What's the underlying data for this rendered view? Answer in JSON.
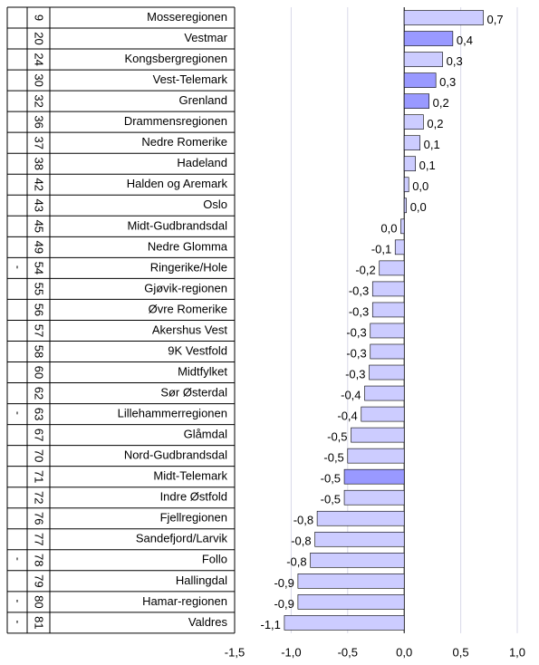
{
  "chart_data": {
    "type": "bar",
    "orientation": "horizontal",
    "categories": [
      "Mosseregionen",
      "Vestmar",
      "Kongsbergregionen",
      "Vest-Telemark",
      "Grenland",
      "Drammensregionen",
      "Nedre Romerike",
      "Hadeland",
      "Halden og Aremark",
      "Oslo",
      "Midt-Gudbrandsdal",
      "Nedre Glomma",
      "Ringerike/Hole",
      "Gjøvik-regionen",
      "Øvre Romerike",
      "Akershus Vest",
      "9K Vestfold",
      "Midtfylket",
      "Sør Østerdal",
      "Lillehammerregionen",
      "Glåmdal",
      "Nord-Gudbrandsdal",
      "Midt-Telemark",
      "Indre Østfold",
      "Fjellregionen",
      "Sandefjord/Larvik",
      "Follo",
      "Hallingdal",
      "Hamar-regionen",
      "Valdres"
    ],
    "ranks": [
      "9",
      "20",
      "24",
      "30",
      "32",
      "36",
      "37",
      "38",
      "42",
      "43",
      "45",
      "49",
      "54",
      "55",
      "56",
      "57",
      "58",
      "60",
      "62",
      "63",
      "67",
      "70",
      "71",
      "72",
      "76",
      "77",
      "78",
      "79",
      "80",
      "81"
    ],
    "flags": [
      null,
      null,
      null,
      null,
      null,
      null,
      null,
      null,
      null,
      null,
      null,
      null,
      "'",
      null,
      null,
      null,
      null,
      null,
      null,
      "'",
      null,
      null,
      null,
      null,
      null,
      null,
      "'",
      null,
      "'",
      "'"
    ],
    "values": [
      0.7,
      0.43,
      0.34,
      0.28,
      0.22,
      0.17,
      0.14,
      0.1,
      0.04,
      0.02,
      -0.03,
      -0.08,
      -0.22,
      -0.28,
      -0.28,
      -0.3,
      -0.3,
      -0.31,
      -0.35,
      -0.38,
      -0.47,
      -0.5,
      -0.53,
      -0.53,
      -0.77,
      -0.79,
      -0.83,
      -0.94,
      -0.94,
      -1.06
    ],
    "value_labels": [
      "0,7",
      "0,4",
      "0,3",
      "0,3",
      "0,2",
      "0,2",
      "0,1",
      "0,1",
      "0,0",
      "0,0",
      "0,0",
      "-0,1",
      "-0,2",
      "-0,3",
      "-0,3",
      "-0,3",
      "-0,3",
      "-0,3",
      "-0,4",
      "-0,4",
      "-0,5",
      "-0,5",
      "-0,5",
      "-0,5",
      "-0,8",
      "-0,8",
      "-0,8",
      "-0,9",
      "-0,9",
      "-1,1"
    ],
    "colors": [
      "#ccccff",
      "#9999ff",
      "#ccccff",
      "#9999ff",
      "#9999ff",
      "#ccccff",
      "#ccccff",
      "#ccccff",
      "#ccccff",
      "#ccccff",
      "#ccccff",
      "#ccccff",
      "#ccccff",
      "#ccccff",
      "#ccccff",
      "#ccccff",
      "#ccccff",
      "#ccccff",
      "#ccccff",
      "#ccccff",
      "#ccccff",
      "#ccccff",
      "#9999ff",
      "#ccccff",
      "#ccccff",
      "#ccccff",
      "#ccccff",
      "#ccccff",
      "#ccccff",
      "#ccccff"
    ],
    "xlim": [
      -1.5,
      1.0
    ],
    "xticks": [
      {
        "value": -1.5,
        "label": "-1,5"
      },
      {
        "value": -1.0,
        "label": "-1,0"
      },
      {
        "value": -0.5,
        "label": "-0,5"
      },
      {
        "value": 0.0,
        "label": "0,0"
      },
      {
        "value": 0.5,
        "label": "0,5"
      },
      {
        "value": 1.0,
        "label": "1,0"
      }
    ],
    "grid": true
  }
}
